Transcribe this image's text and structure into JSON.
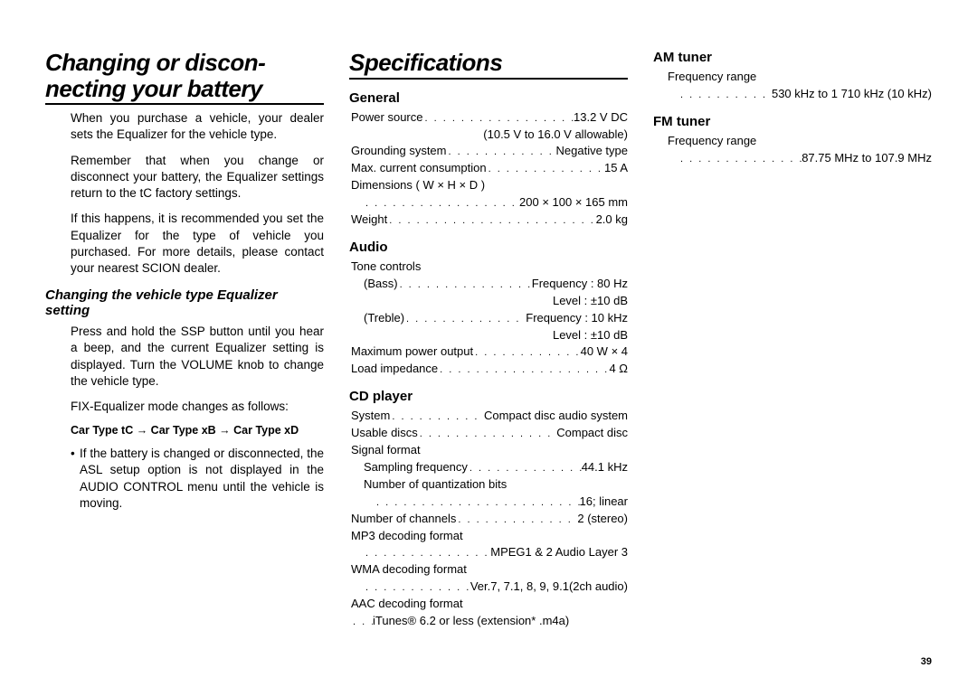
{
  "page_number": "39",
  "col1": {
    "title": "Changing or discon- necting your battery",
    "p1": "When you purchase a vehicle, your dealer sets the Equalizer for the vehicle type.",
    "p2": "Remember that when you change or disconnect your battery, the Equalizer settings return to the tC factory settings.",
    "p3": "If this happens, it is recommended you set the Equalizer for the type of vehicle you purchased. For more details, please contact your nearest SCION dealer.",
    "sub1": "Changing the vehicle type Equalizer setting",
    "p4": "Press and hold the SSP button until you hear a beep, and the current Equalizer setting is displayed. Turn the VOLUME knob to change the vehicle type.",
    "p5": "FIX-Equalizer mode changes as follows:",
    "seq": "Car Type tC  →  Car Type xB  →  Car Type xD",
    "bullet": "If the battery is changed or disconnected, the ASL setup option is not displayed in the AUDIO CONTROL menu until the vehicle is moving."
  },
  "col2": {
    "title": "Specifications",
    "general": {
      "heading": "General",
      "l1_label": "Power source",
      "l1_val": "13.2 V DC",
      "l1b": "(10.5 V to 16.0 V allowable)",
      "l2_label": "Grounding system",
      "l2_val": "Negative type",
      "l3_label": "Max. current consumption",
      "l3_val": "15 A",
      "l4": "Dimensions ( W × H × D )",
      "l4_val": "200 × 100 × 165 mm",
      "l5_label": "Weight",
      "l5_val": "2.0 kg"
    },
    "audio": {
      "heading": "Audio",
      "l1": "Tone controls",
      "l2_label": "(Bass)",
      "l2_val": "Frequency : 80 Hz",
      "l2b": "Level : ±10 dB",
      "l3_label": "(Treble)",
      "l3_val": "Frequency : 10 kHz",
      "l3b": "Level : ±10 dB",
      "l4_label": "Maximum power output",
      "l4_val": "40 W × 4",
      "l5_label": "Load impedance",
      "l5_val": "4 Ω"
    },
    "cd": {
      "heading": "CD player",
      "l1_label": "System",
      "l1_val": "Compact disc audio system",
      "l2_label": "Usable discs",
      "l2_val": "Compact disc",
      "l3": "Signal format",
      "l4_label": "Sampling frequency",
      "l4_val": "44.1 kHz",
      "l5": "Number of quantization bits",
      "l5_val": "16; linear",
      "l6_label": "Number of channels",
      "l6_val": "2 (stereo)",
      "l7": "MP3 decoding format",
      "l7_val": "MPEG1 & 2  Audio Layer 3",
      "l8": "WMA decoding format",
      "l8_val": "Ver.7, 7.1, 8, 9, 9.1(2ch audio)",
      "l9": "AAC decoding format",
      "l9_val": "iTunes® 6.2 or less (extension* .m4a)"
    }
  },
  "col3": {
    "am": {
      "heading": "AM tuner",
      "l1": "Frequency range",
      "l1_val": "530 kHz to 1 710 kHz (10 kHz)"
    },
    "fm": {
      "heading": "FM tuner",
      "l1": "Frequency range",
      "l1_val": "87.75 MHz to 107.9 MHz"
    }
  }
}
